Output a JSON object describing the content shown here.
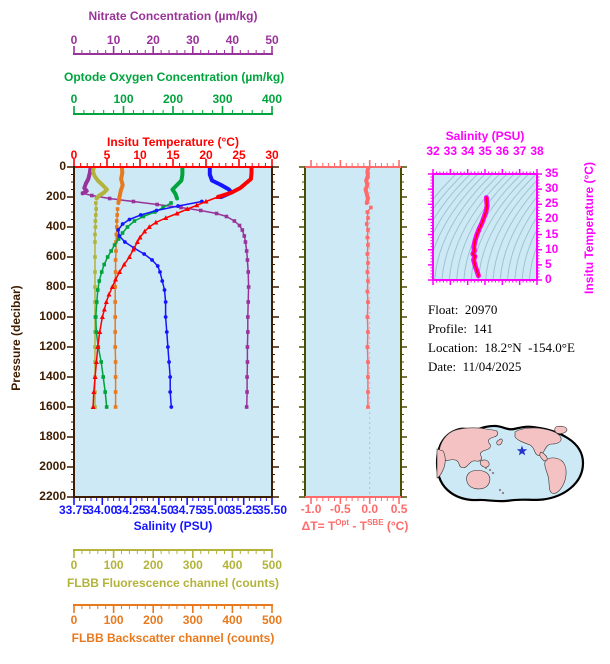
{
  "chart_data": [
    {
      "type": "line",
      "title": "",
      "ylabel": "Pressure (decibar)",
      "ylim": [
        0,
        2200
      ],
      "yticks": [
        "0",
        "200",
        "400",
        "600",
        "800",
        "1000",
        "1200",
        "1400",
        "1600",
        "1800",
        "2000",
        "2200"
      ],
      "y_minor": 50,
      "axis_color": "#3D1C00",
      "bg": "#CDE9F6",
      "series": [
        {
          "name": "Insitu Temperature (°C)",
          "color": "#FF0000",
          "marker": "triangle",
          "thick_to": 200,
          "xlim": [
            0,
            30
          ],
          "minor": 1,
          "ticks": [
            "0",
            "5",
            "10",
            "15",
            "20",
            "25",
            "30"
          ],
          "points": [
            [
              0,
              26.9
            ],
            [
              40,
              26.9
            ],
            [
              80,
              26.8
            ],
            [
              110,
              26.0
            ],
            [
              140,
              25.2
            ],
            [
              170,
              23.9
            ],
            [
              200,
              21.8
            ],
            [
              230,
              20.0
            ],
            [
              255,
              18.6
            ],
            [
              280,
              17.2
            ],
            [
              310,
              15.6
            ],
            [
              340,
              13.9
            ],
            [
              370,
              12.4
            ],
            [
              400,
              11.4
            ],
            [
              430,
              10.7
            ],
            [
              470,
              10.0
            ],
            [
              500,
              9.6
            ],
            [
              550,
              9.0
            ],
            [
              600,
              8.4
            ],
            [
              650,
              7.6
            ],
            [
              700,
              6.9
            ],
            [
              750,
              6.3
            ],
            [
              800,
              5.8
            ],
            [
              850,
              5.3
            ],
            [
              900,
              4.9
            ],
            [
              950,
              4.6
            ],
            [
              1000,
              4.3
            ],
            [
              1100,
              3.9
            ],
            [
              1200,
              3.6
            ],
            [
              1300,
              3.4
            ],
            [
              1400,
              3.2
            ],
            [
              1500,
              3.0
            ],
            [
              1600,
              2.9
            ]
          ]
        },
        {
          "name": "Salinity (PSU)",
          "color": "#1515FF",
          "marker": "circle",
          "thick_to": 210,
          "xlim": [
            33.75,
            35.5
          ],
          "minor": 0.05,
          "ticks": [
            "33.75",
            "34.00",
            "34.25",
            "34.50",
            "34.75",
            "35.00",
            "35.25",
            "35.50"
          ],
          "points": [
            [
              0,
              34.95
            ],
            [
              50,
              34.95
            ],
            [
              90,
              34.97
            ],
            [
              120,
              35.05
            ],
            [
              150,
              35.12
            ],
            [
              170,
              35.14
            ],
            [
              200,
              35.05
            ],
            [
              230,
              34.88
            ],
            [
              260,
              34.67
            ],
            [
              290,
              34.48
            ],
            [
              320,
              34.34
            ],
            [
              350,
              34.24
            ],
            [
              380,
              34.18
            ],
            [
              420,
              34.14
            ],
            [
              460,
              34.15
            ],
            [
              500,
              34.2
            ],
            [
              540,
              34.28
            ],
            [
              580,
              34.37
            ],
            [
              620,
              34.44
            ],
            [
              660,
              34.49
            ],
            [
              700,
              34.51
            ],
            [
              760,
              34.53
            ],
            [
              820,
              34.55
            ],
            [
              900,
              34.56
            ],
            [
              1000,
              34.56
            ],
            [
              1100,
              34.57
            ],
            [
              1200,
              34.58
            ],
            [
              1300,
              34.59
            ],
            [
              1400,
              34.6
            ],
            [
              1500,
              34.6
            ],
            [
              1600,
              34.61
            ]
          ]
        },
        {
          "name": "Optode Oxygen Concentration (µm/kg)",
          "color": "#00A33C",
          "marker": "square",
          "thick_to": 230,
          "xlim": [
            0,
            400
          ],
          "minor": 20,
          "ticks": [
            "0",
            "100",
            "200",
            "300",
            "400"
          ],
          "points": [
            [
              0,
              219
            ],
            [
              50,
              219
            ],
            [
              90,
              217
            ],
            [
              120,
              208
            ],
            [
              150,
              199
            ],
            [
              180,
              205
            ],
            [
              210,
              208
            ],
            [
              240,
              196
            ],
            [
              270,
              180
            ],
            [
              300,
              163
            ],
            [
              330,
              140
            ],
            [
              360,
              122
            ],
            [
              400,
              108
            ],
            [
              440,
              98
            ],
            [
              480,
              90
            ],
            [
              520,
              82
            ],
            [
              560,
              75
            ],
            [
              600,
              68
            ],
            [
              650,
              61
            ],
            [
              700,
              56
            ],
            [
              760,
              51
            ],
            [
              820,
              48
            ],
            [
              900,
              46
            ],
            [
              1000,
              44
            ],
            [
              1100,
              45
            ],
            [
              1200,
              49
            ],
            [
              1300,
              55
            ],
            [
              1400,
              59
            ],
            [
              1500,
              63
            ],
            [
              1600,
              66
            ]
          ]
        },
        {
          "name": "Nitrate Concentration (µm/kg)",
          "color": "#993399",
          "marker": "square",
          "thick_to": 175,
          "xlim": [
            0,
            50
          ],
          "minor": 2,
          "ticks": [
            "0",
            "10",
            "20",
            "30",
            "40",
            "50"
          ],
          "points": [
            [
              0,
              4.2
            ],
            [
              40,
              4.0
            ],
            [
              80,
              3.6
            ],
            [
              110,
              3.0
            ],
            [
              140,
              2.6
            ],
            [
              160,
              3.2
            ],
            [
              175,
              2.2
            ],
            [
              190,
              4.5
            ],
            [
              210,
              9.0
            ],
            [
              230,
              15.0
            ],
            [
              250,
              21.0
            ],
            [
              270,
              27.0
            ],
            [
              290,
              32.0
            ],
            [
              310,
              36.0
            ],
            [
              330,
              38.5
            ],
            [
              360,
              40.5
            ],
            [
              390,
              41.8
            ],
            [
              420,
              42.5
            ],
            [
              460,
              43.0
            ],
            [
              500,
              43.3
            ],
            [
              560,
              43.6
            ],
            [
              620,
              43.8
            ],
            [
              700,
              44.0
            ],
            [
              800,
              44.1
            ],
            [
              900,
              44.0
            ],
            [
              1000,
              43.9
            ],
            [
              1100,
              43.9
            ],
            [
              1200,
              43.8
            ],
            [
              1300,
              43.8
            ],
            [
              1400,
              43.7
            ],
            [
              1500,
              43.7
            ],
            [
              1600,
              43.6
            ]
          ]
        },
        {
          "name": "FLBB Fluorescence channel (counts)",
          "color": "#B3B33B",
          "marker": "square",
          "thick_to": 230,
          "xlim": [
            0,
            500
          ],
          "minor": 20,
          "ticks": [
            "0",
            "100",
            "200",
            "300",
            "400",
            "500"
          ],
          "points": [
            [
              0,
              50
            ],
            [
              30,
              48
            ],
            [
              60,
              52
            ],
            [
              90,
              60
            ],
            [
              120,
              72
            ],
            [
              150,
              83
            ],
            [
              170,
              76
            ],
            [
              190,
              64
            ],
            [
              210,
              57
            ],
            [
              240,
              55
            ],
            [
              280,
              56
            ],
            [
              320,
              55
            ],
            [
              360,
              54
            ],
            [
              400,
              54
            ],
            [
              450,
              53
            ],
            [
              500,
              53
            ],
            [
              600,
              53
            ],
            [
              700,
              53
            ],
            [
              800,
              53
            ],
            [
              900,
              53
            ],
            [
              1000,
              53
            ],
            [
              1100,
              53
            ],
            [
              1200,
              53
            ],
            [
              1300,
              53
            ],
            [
              1400,
              53
            ],
            [
              1500,
              53
            ],
            [
              1600,
              53
            ]
          ]
        },
        {
          "name": "FLBB Backscatter channel (counts)",
          "color": "#E8791D",
          "marker": "square",
          "thick_to": 260,
          "xlim": [
            0,
            500
          ],
          "minor": 20,
          "ticks": [
            "0",
            "100",
            "200",
            "300",
            "400",
            "500"
          ],
          "points": [
            [
              0,
              121
            ],
            [
              40,
              122
            ],
            [
              80,
              119
            ],
            [
              120,
              123
            ],
            [
              160,
              118
            ],
            [
              200,
              115
            ],
            [
              240,
              112
            ],
            [
              280,
              110
            ],
            [
              320,
              109
            ],
            [
              360,
              108
            ],
            [
              400,
              108
            ],
            [
              450,
              107
            ],
            [
              500,
              106
            ],
            [
              560,
              106
            ],
            [
              620,
              105
            ],
            [
              700,
              105
            ],
            [
              800,
              104
            ],
            [
              900,
              104
            ],
            [
              1000,
              104
            ],
            [
              1100,
              104
            ],
            [
              1200,
              104
            ],
            [
              1300,
              105
            ],
            [
              1400,
              105
            ],
            [
              1500,
              105
            ],
            [
              1600,
              105
            ]
          ]
        }
      ]
    },
    {
      "type": "line",
      "xlabel_parts": {
        "prefix": "ΔT= T",
        "sup1": "Opt",
        "mid": " - T",
        "sup2": "SBE",
        "suffix": " (°C)"
      },
      "color": "#FF6B6B",
      "spine_color": "#4D4D00",
      "xlim": [
        -1.0,
        0.5
      ],
      "xticks": [
        "-1.0",
        "-0.5",
        "0.0",
        "0.5"
      ],
      "minor": 0.1,
      "ylim": [
        0,
        2200
      ],
      "thick_to": 250,
      "marker": "square",
      "points": [
        [
          0,
          -0.02
        ],
        [
          30,
          -0.04
        ],
        [
          60,
          -0.03
        ],
        [
          90,
          -0.06
        ],
        [
          120,
          -0.04
        ],
        [
          150,
          -0.07
        ],
        [
          180,
          -0.05
        ],
        [
          210,
          -0.03
        ],
        [
          240,
          -0.05
        ],
        [
          270,
          0.02
        ],
        [
          300,
          -0.04
        ],
        [
          340,
          -0.03
        ],
        [
          380,
          -0.05
        ],
        [
          420,
          -0.03
        ],
        [
          470,
          -0.04
        ],
        [
          520,
          -0.03
        ],
        [
          580,
          -0.04
        ],
        [
          640,
          -0.03
        ],
        [
          700,
          -0.04
        ],
        [
          760,
          -0.03
        ],
        [
          830,
          -0.04
        ],
        [
          900,
          -0.03
        ],
        [
          1000,
          -0.04
        ],
        [
          1100,
          -0.03
        ],
        [
          1200,
          -0.04
        ],
        [
          1300,
          -0.03
        ],
        [
          1400,
          -0.03
        ],
        [
          1500,
          -0.03
        ],
        [
          1600,
          -0.03
        ]
      ]
    },
    {
      "type": "line",
      "xlabel": "Salinity (PSU)",
      "ylabel": "Insitu Temperature (°C)",
      "color": "#FF00FF",
      "core_color": "#FF0000",
      "contour_color": "#9FC3D0",
      "xlim": [
        32,
        38
      ],
      "ylim": [
        0,
        35
      ],
      "xticks": [
        "32",
        "33",
        "34",
        "35",
        "36",
        "37",
        "38"
      ],
      "yticks": [
        "35",
        "30",
        "25",
        "20",
        "15",
        "10",
        "5",
        "0"
      ],
      "x_minor": 0.2,
      "y_minor": 1,
      "points": [
        [
          35.08,
          27.2
        ],
        [
          35.1,
          26.0
        ],
        [
          35.12,
          24.5
        ],
        [
          35.05,
          22.5
        ],
        [
          34.95,
          20.8
        ],
        [
          34.82,
          18.8
        ],
        [
          34.66,
          16.8
        ],
        [
          34.52,
          14.8
        ],
        [
          34.42,
          12.8
        ],
        [
          34.36,
          11.0
        ],
        [
          34.38,
          9.6
        ],
        [
          34.3,
          8.6
        ],
        [
          34.42,
          7.8
        ],
        [
          34.34,
          6.6
        ],
        [
          34.4,
          5.4
        ],
        [
          34.46,
          4.2
        ],
        [
          34.52,
          3.2
        ],
        [
          34.58,
          2.2
        ],
        [
          34.62,
          1.4
        ]
      ]
    }
  ],
  "info": {
    "lines": [
      {
        "label": "Float:",
        "value": "20970"
      },
      {
        "label": "Profile:",
        "value": "141"
      },
      {
        "label": "Location:",
        "value": "18.2°N  -154.0°E"
      },
      {
        "label": "Date:",
        "value": "11/04/2025"
      }
    ]
  },
  "map": {
    "ocean_color": "#CDE9F6",
    "land_color": "#F4C2C2",
    "star_color": "#2233CC"
  }
}
